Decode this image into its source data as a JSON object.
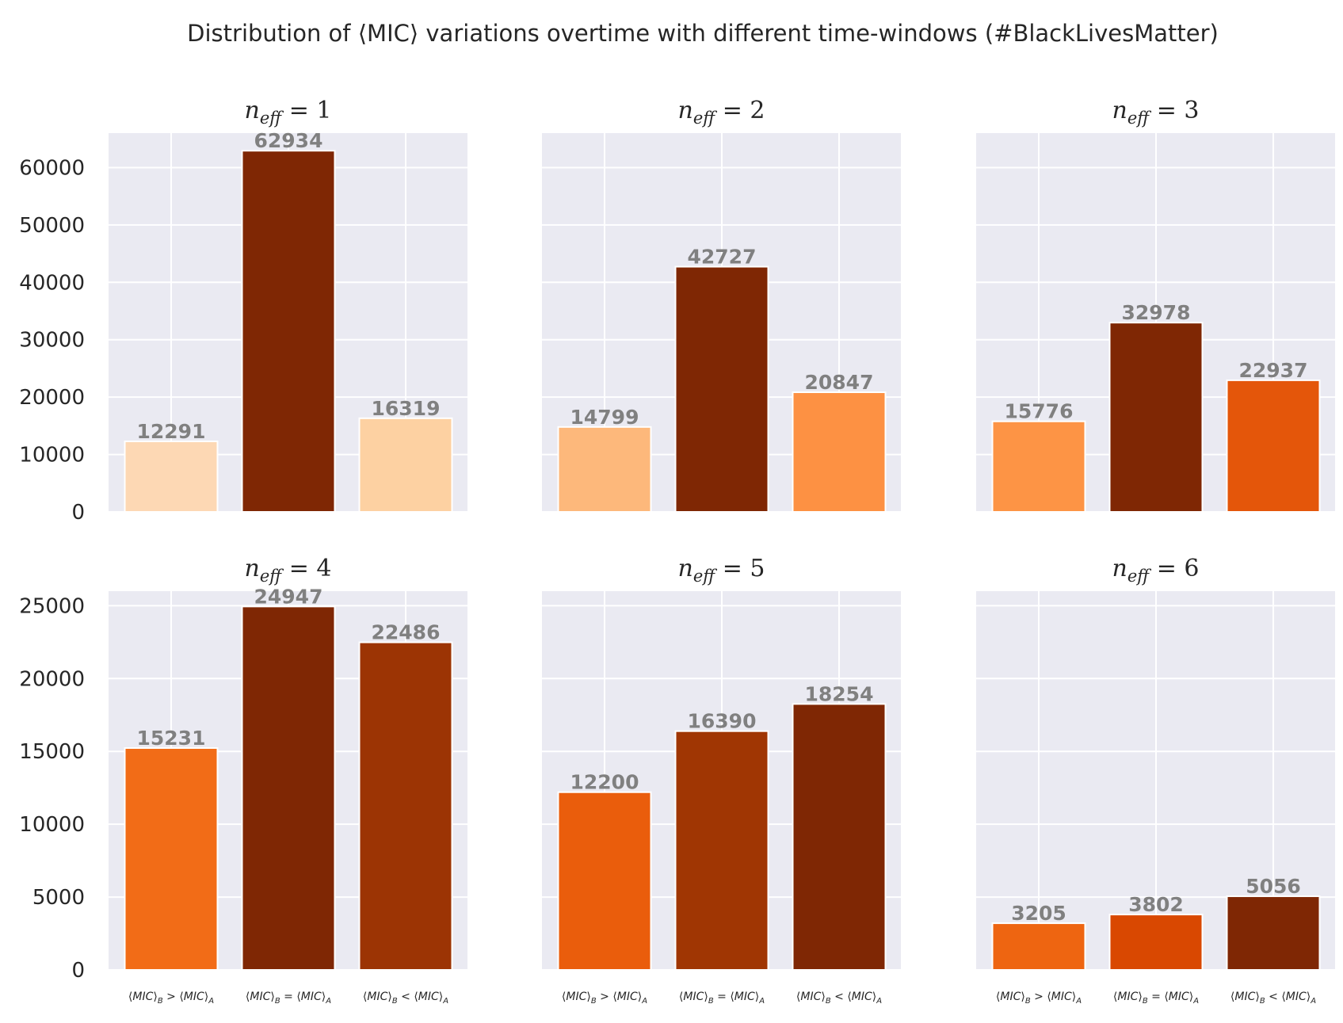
{
  "colors": {
    "plot_background": "#eaeaf2",
    "grid": "#ffffff",
    "bar_edge": "#ffffff",
    "label_text": "#808080"
  },
  "chart_data": {
    "type": "bar",
    "title": "Distribution of ⟨MIC⟩ variations overtime with different time-windows (#BlackLivesMatter)",
    "categories": [
      "⟨MIC⟩B > ⟨MIC⟩A",
      "⟨MIC⟩B = ⟨MIC⟩A",
      "⟨MIC⟩B < ⟨MIC⟩A"
    ],
    "xlabel": "",
    "ylabel": "",
    "grid": true,
    "rows": [
      {
        "ylim": [
          0,
          66000
        ],
        "yticks": [
          0,
          10000,
          20000,
          30000,
          40000,
          50000,
          60000
        ]
      },
      {
        "ylim": [
          0,
          26000
        ],
        "yticks": [
          0,
          5000,
          10000,
          15000,
          20000,
          25000
        ]
      }
    ],
    "panels": [
      {
        "n_eff": "1",
        "values": [
          12291,
          62934,
          16319
        ],
        "colors": [
          "#fdd8b4",
          "#7f2704",
          "#fdd1a2"
        ]
      },
      {
        "n_eff": "2",
        "values": [
          14799,
          42727,
          20847
        ],
        "colors": [
          "#fdb87b",
          "#7f2704",
          "#fd9143"
        ]
      },
      {
        "n_eff": "3",
        "values": [
          15776,
          32978,
          22937
        ],
        "colors": [
          "#fd9445",
          "#7f2704",
          "#e4560a"
        ]
      },
      {
        "n_eff": "4",
        "values": [
          15231,
          24947,
          22486
        ],
        "colors": [
          "#f26c17",
          "#7f2704",
          "#9c3404"
        ]
      },
      {
        "n_eff": "5",
        "values": [
          12200,
          16390,
          18254
        ],
        "colors": [
          "#ea5d0c",
          "#a03603",
          "#7f2704"
        ]
      },
      {
        "n_eff": "6",
        "values": [
          3205,
          3802,
          5056
        ],
        "colors": [
          "#ee6511",
          "#d94801",
          "#7f2704"
        ]
      }
    ]
  }
}
